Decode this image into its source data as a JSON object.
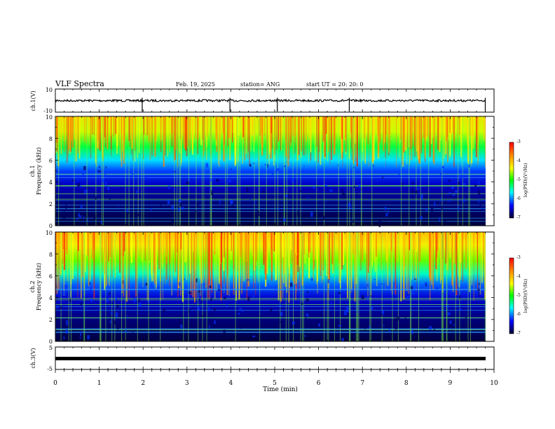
{
  "header": {
    "title": "VLF Spectra",
    "date": "Feb. 19, 2025",
    "station": "station= ANG",
    "start": "start  UT  =   20: 20: 0"
  },
  "colorbar": {
    "label": "log(PSD)(V²/Hz)",
    "ticks": [
      "-3",
      "-4",
      "-5",
      "-6",
      "-7"
    ],
    "colors": [
      "#ff0000",
      "#ffa000",
      "#ffff00",
      "#00ff00",
      "#00ffff",
      "#0000ff",
      "#000000"
    ]
  },
  "chart_data": [
    {
      "type": "line",
      "panel": "ch1-waveform",
      "ylabel": "ch.1(V)",
      "ylim": [
        -10,
        10
      ],
      "yticks": [
        "10",
        "-10"
      ],
      "baseline": 0,
      "spikes_x_min": [
        1.98,
        3.98,
        5.06,
        6.7,
        9.8
      ]
    },
    {
      "type": "heatmap",
      "panel": "ch1-spectrogram",
      "ylabel_top": "ch.1",
      "ylabel": "Frequency (kHz)",
      "ylim": [
        0,
        10
      ],
      "yticks": [
        "0",
        "2",
        "4",
        "6",
        "8",
        "10"
      ],
      "color_range": [
        -7,
        -3
      ]
    },
    {
      "type": "heatmap",
      "panel": "ch2-spectrogram",
      "ylabel_top": "ch.2",
      "ylabel": "Frequency (kHz)",
      "ylim": [
        0,
        10
      ],
      "yticks": [
        "0",
        "2",
        "4",
        "6",
        "8",
        "10"
      ],
      "color_range": [
        -7,
        -3
      ]
    },
    {
      "type": "line",
      "panel": "ch3-waveform",
      "ylabel": "ch.3(V)",
      "ylim": [
        -5,
        5
      ],
      "yticks": [
        "5",
        "-5"
      ],
      "baseline": -0.5
    }
  ],
  "xaxis": {
    "label": "Time (min)",
    "ticks": [
      "0",
      "1",
      "2",
      "3",
      "4",
      "5",
      "6",
      "7",
      "8",
      "9",
      "10"
    ],
    "xlim": [
      0,
      10
    ]
  }
}
